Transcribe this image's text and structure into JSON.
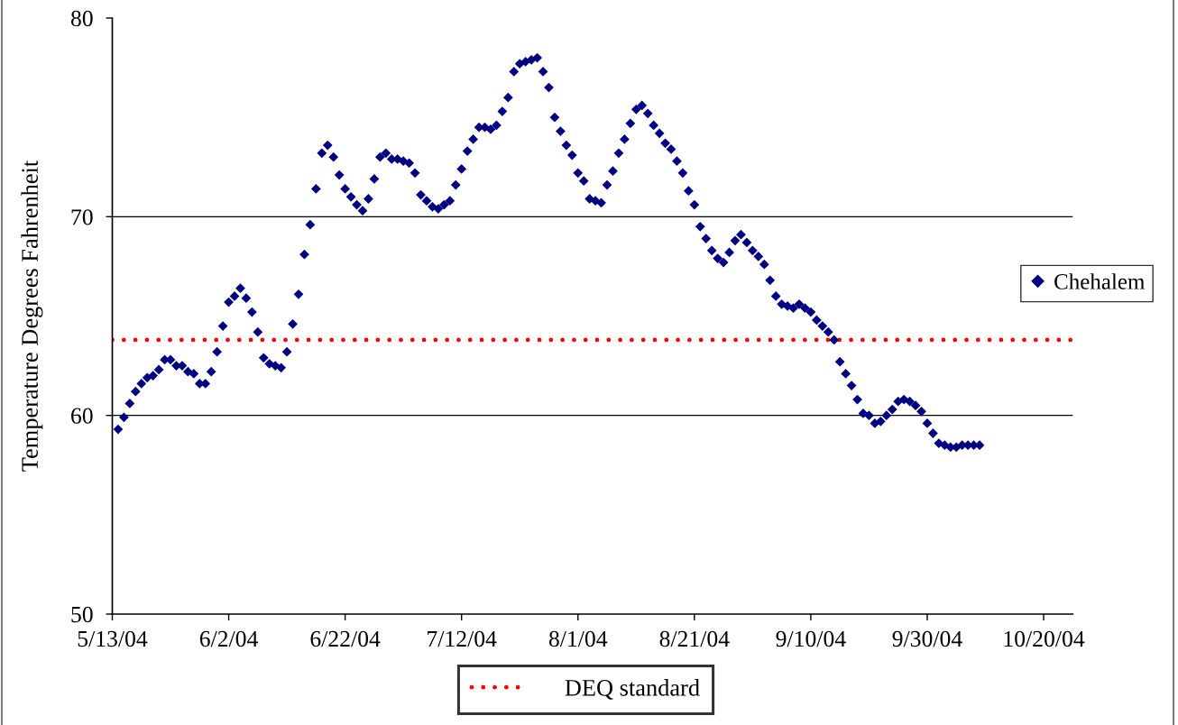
{
  "chart_data": {
    "type": "scatter",
    "ylabel": "Temperature Degrees Fahrenheit",
    "x": [
      "2004-05-14",
      "2004-05-15",
      "2004-05-16",
      "2004-05-17",
      "2004-05-18",
      "2004-05-19",
      "2004-05-20",
      "2004-05-21",
      "2004-05-22",
      "2004-05-23",
      "2004-05-24",
      "2004-05-25",
      "2004-05-26",
      "2004-05-27",
      "2004-05-28",
      "2004-05-29",
      "2004-05-30",
      "2004-05-31",
      "2004-06-01",
      "2004-06-02",
      "2004-06-03",
      "2004-06-04",
      "2004-06-05",
      "2004-06-06",
      "2004-06-07",
      "2004-06-08",
      "2004-06-09",
      "2004-06-10",
      "2004-06-11",
      "2004-06-12",
      "2004-06-13",
      "2004-06-14",
      "2004-06-15",
      "2004-06-16",
      "2004-06-17",
      "2004-06-18",
      "2004-06-19",
      "2004-06-20",
      "2004-06-21",
      "2004-06-22",
      "2004-06-23",
      "2004-06-24",
      "2004-06-25",
      "2004-06-26",
      "2004-06-27",
      "2004-06-28",
      "2004-06-29",
      "2004-06-30",
      "2004-07-01",
      "2004-07-02",
      "2004-07-03",
      "2004-07-04",
      "2004-07-05",
      "2004-07-06",
      "2004-07-07",
      "2004-07-08",
      "2004-07-09",
      "2004-07-10",
      "2004-07-11",
      "2004-07-12",
      "2004-07-13",
      "2004-07-14",
      "2004-07-15",
      "2004-07-16",
      "2004-07-17",
      "2004-07-18",
      "2004-07-19",
      "2004-07-20",
      "2004-07-21",
      "2004-07-22",
      "2004-07-23",
      "2004-07-24",
      "2004-07-25",
      "2004-07-26",
      "2004-07-27",
      "2004-07-28",
      "2004-07-29",
      "2004-07-30",
      "2004-07-31",
      "2004-08-01",
      "2004-08-02",
      "2004-08-03",
      "2004-08-04",
      "2004-08-05",
      "2004-08-06",
      "2004-08-07",
      "2004-08-08",
      "2004-08-09",
      "2004-08-10",
      "2004-08-11",
      "2004-08-12",
      "2004-08-13",
      "2004-08-14",
      "2004-08-15",
      "2004-08-16",
      "2004-08-17",
      "2004-08-18",
      "2004-08-19",
      "2004-08-20",
      "2004-08-21",
      "2004-08-22",
      "2004-08-23",
      "2004-08-24",
      "2004-08-25",
      "2004-08-26",
      "2004-08-27",
      "2004-08-28",
      "2004-08-29",
      "2004-08-30",
      "2004-08-31",
      "2004-09-01",
      "2004-09-02",
      "2004-09-03",
      "2004-09-04",
      "2004-09-05",
      "2004-09-06",
      "2004-09-07",
      "2004-09-08",
      "2004-09-09",
      "2004-09-10",
      "2004-09-11",
      "2004-09-12",
      "2004-09-13",
      "2004-09-14",
      "2004-09-15",
      "2004-09-16",
      "2004-09-17",
      "2004-09-18",
      "2004-09-19",
      "2004-09-20",
      "2004-09-21",
      "2004-09-22",
      "2004-09-23",
      "2004-09-24",
      "2004-09-25",
      "2004-09-26",
      "2004-09-27",
      "2004-09-28",
      "2004-09-29",
      "2004-09-30",
      "2004-10-01",
      "2004-10-02",
      "2004-10-03",
      "2004-10-04",
      "2004-10-05",
      "2004-10-06",
      "2004-10-07",
      "2004-10-08",
      "2004-10-09"
    ],
    "series": [
      {
        "name": "Chehalem",
        "color": "#000080",
        "values": [
          59.3,
          59.9,
          60.6,
          61.2,
          61.6,
          61.9,
          62.0,
          62.3,
          62.8,
          62.8,
          62.5,
          62.5,
          62.2,
          62.1,
          61.6,
          61.6,
          62.2,
          63.2,
          64.5,
          65.7,
          66.0,
          66.4,
          65.9,
          65.2,
          64.2,
          62.9,
          62.6,
          62.5,
          62.4,
          63.2,
          64.6,
          66.1,
          68.1,
          69.6,
          71.4,
          73.2,
          73.6,
          73.0,
          72.1,
          71.4,
          71.0,
          70.6,
          70.3,
          70.9,
          71.9,
          73.0,
          73.2,
          72.9,
          72.9,
          72.8,
          72.7,
          72.2,
          71.1,
          70.8,
          70.5,
          70.4,
          70.6,
          70.8,
          71.6,
          72.4,
          73.3,
          73.9,
          74.5,
          74.5,
          74.4,
          74.6,
          75.3,
          76.0,
          77.3,
          77.7,
          77.8,
          77.9,
          78.0,
          77.3,
          76.5,
          75.0,
          74.3,
          73.6,
          73.1,
          72.2,
          71.8,
          70.9,
          70.8,
          70.7,
          71.6,
          72.3,
          73.2,
          73.9,
          74.7,
          75.4,
          75.6,
          75.2,
          74.6,
          74.2,
          73.7,
          73.4,
          72.8,
          72.2,
          71.3,
          70.6,
          69.5,
          68.9,
          68.3,
          67.9,
          67.7,
          68.2,
          68.8,
          69.1,
          68.7,
          68.3,
          68.0,
          67.6,
          66.8,
          66.0,
          65.6,
          65.5,
          65.4,
          65.6,
          65.4,
          65.2,
          64.8,
          64.5,
          64.2,
          63.8,
          62.7,
          62.1,
          61.5,
          60.8,
          60.1,
          60.0,
          59.6,
          59.7,
          60.0,
          60.3,
          60.7,
          60.8,
          60.7,
          60.5,
          60.2,
          59.6,
          59.1,
          58.6,
          58.5,
          58.4,
          58.4,
          58.5,
          58.5,
          58.5,
          58.5
        ]
      }
    ],
    "xlim": [
      "2004-05-13",
      "2004-10-25"
    ],
    "xticks": [
      {
        "value": "2004-05-13",
        "label": "5/13/04"
      },
      {
        "value": "2004-06-02",
        "label": "6/2/04"
      },
      {
        "value": "2004-06-22",
        "label": "6/22/04"
      },
      {
        "value": "2004-07-12",
        "label": "7/12/04"
      },
      {
        "value": "2004-08-01",
        "label": "8/1/04"
      },
      {
        "value": "2004-08-21",
        "label": "8/21/04"
      },
      {
        "value": "2004-09-10",
        "label": "9/10/04"
      },
      {
        "value": "2004-09-30",
        "label": "9/30/04"
      },
      {
        "value": "2004-10-20",
        "label": "10/20/04"
      }
    ],
    "ylim": [
      50,
      80
    ],
    "yticks": [
      50,
      60,
      70,
      80
    ],
    "grid": "y",
    "legend": "right",
    "marker": "diamond",
    "ref_lines": [
      {
        "axis": "y",
        "value": 63.8,
        "label": "DEQ standard",
        "color": "#ff0000",
        "line_style": "dotted"
      }
    ]
  }
}
